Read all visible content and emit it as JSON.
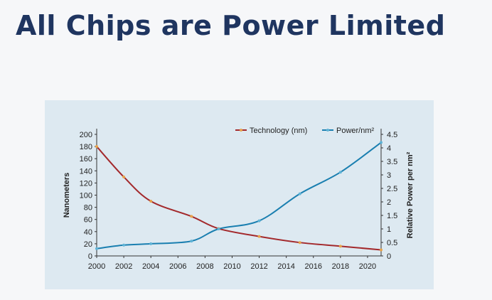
{
  "slide": {
    "title": "All Chips are Power Limited"
  },
  "chart_data": {
    "type": "line",
    "x": [
      2000,
      2002,
      2004,
      2007,
      2009,
      2012,
      2015,
      2018,
      2021
    ],
    "series": [
      {
        "name": "Technology (nm)",
        "axis": "left",
        "color": "#a3292c",
        "marker_color": "#e8a34a",
        "values": [
          180,
          130,
          90,
          65,
          45,
          32,
          22,
          16,
          10
        ]
      },
      {
        "name": "Power/nm²",
        "axis": "right",
        "color": "#1a7fb0",
        "marker_color": "#5fb3d6",
        "values": [
          0.27,
          0.4,
          0.45,
          0.55,
          1.0,
          1.3,
          2.3,
          3.1,
          4.2
        ]
      }
    ],
    "xlim": [
      2000,
      2021
    ],
    "xticks": [
      "2000",
      "2002",
      "2004",
      "2006",
      "2008",
      "2010",
      "2012",
      "2014",
      "2016",
      "2018",
      "2020"
    ],
    "ylabel": "Nanometers",
    "ylim": [
      0,
      200
    ],
    "yticks": [
      "0",
      "20",
      "40",
      "60",
      "80",
      "100",
      "120",
      "140",
      "160",
      "180",
      "200"
    ],
    "y2label": "Relative Power per nm²",
    "y2lim": [
      0,
      4.5
    ],
    "y2ticks": [
      "0",
      "0.5",
      "1",
      "1.5",
      "2",
      "2.5",
      "3",
      "3.5",
      "4",
      "4.5"
    ],
    "legend": "top-right",
    "grid": false
  }
}
